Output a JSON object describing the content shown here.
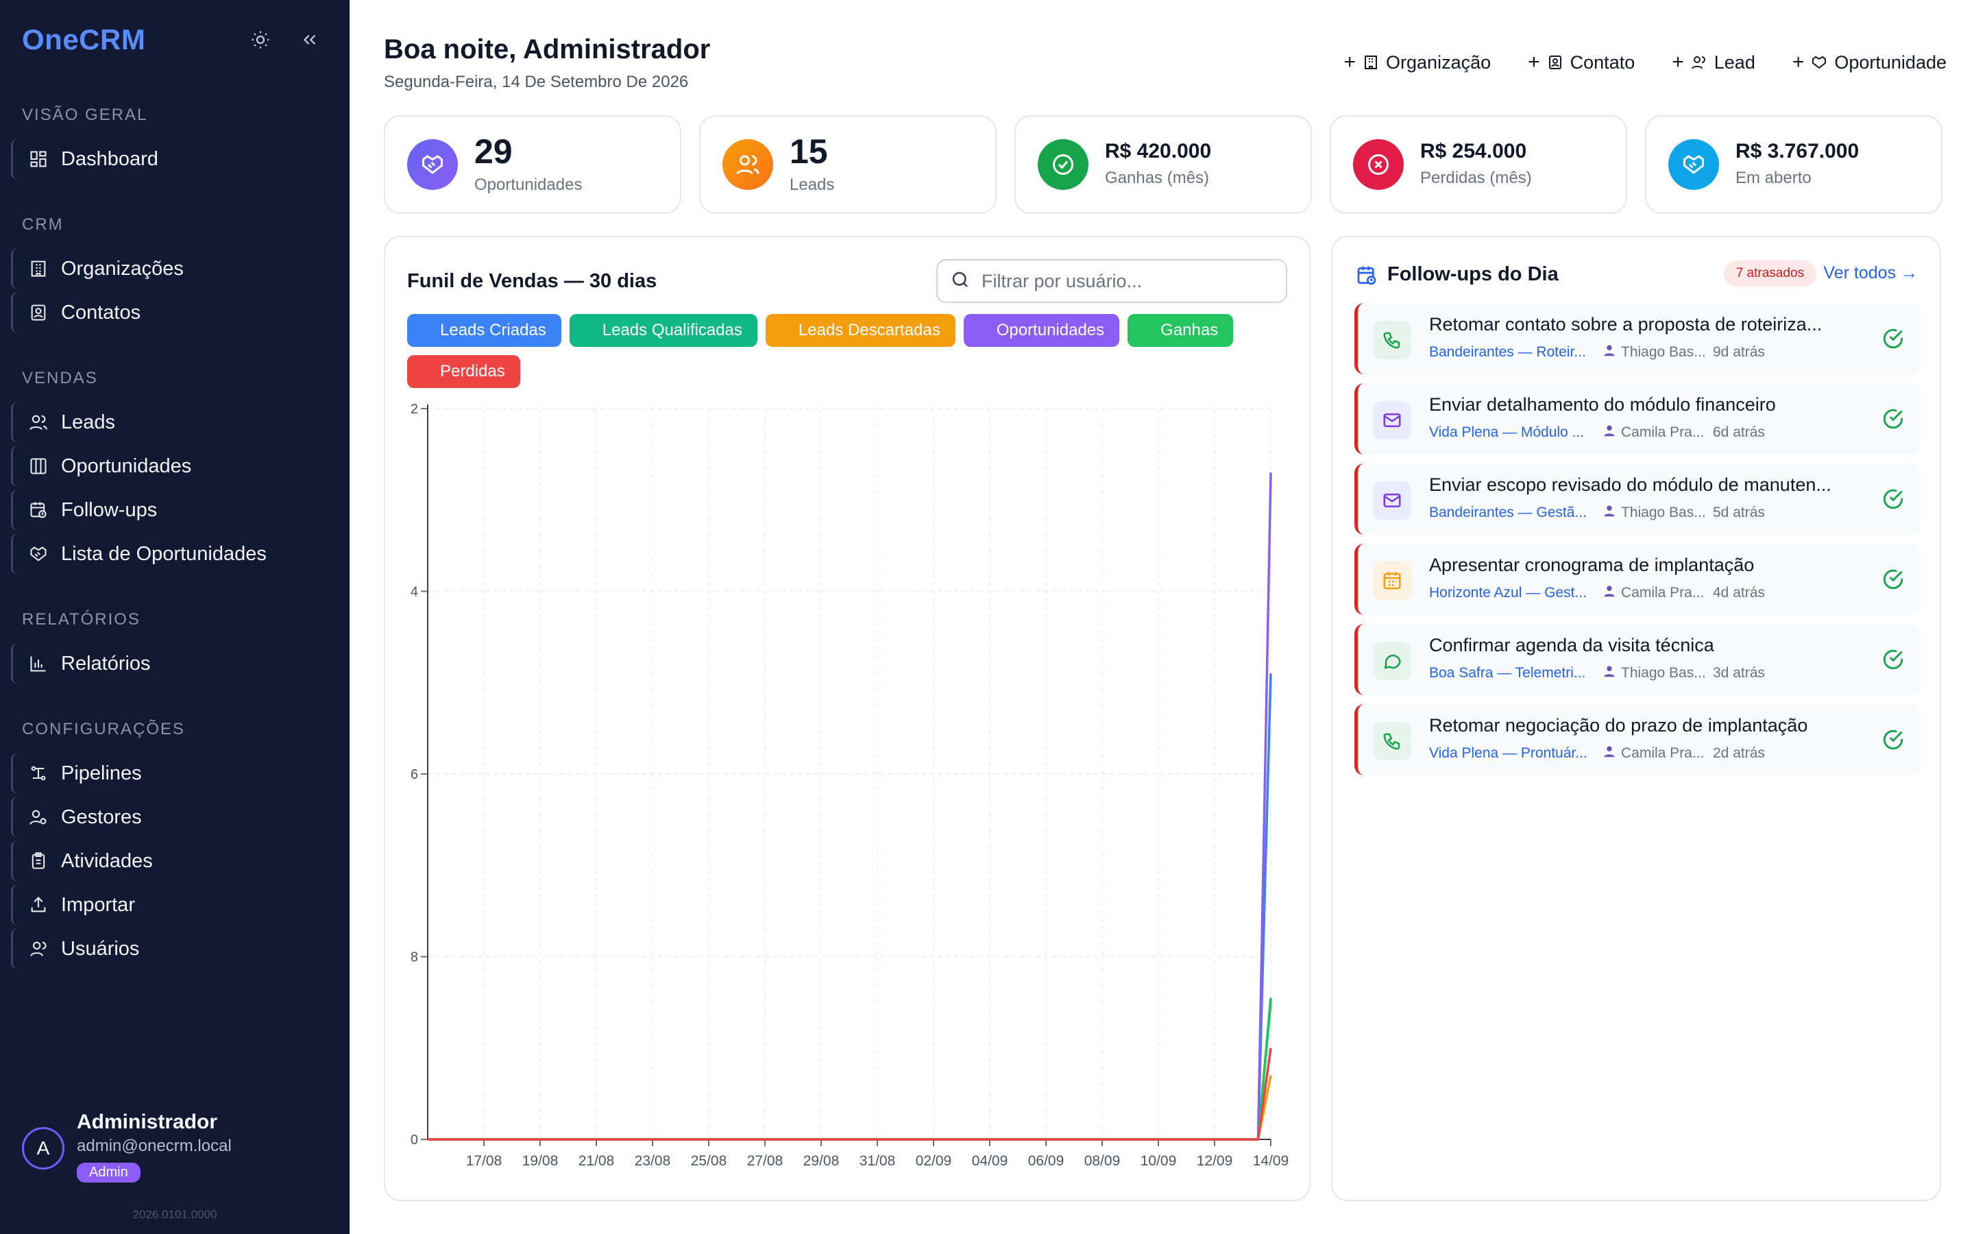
{
  "sidebar": {
    "brand": "OneCRM",
    "sections": [
      {
        "title": "VISÃO GERAL",
        "items": [
          {
            "label": "Dashboard",
            "icon": "dashboard-icon"
          }
        ]
      },
      {
        "title": "CRM",
        "items": [
          {
            "label": "Organizações",
            "icon": "building-icon"
          },
          {
            "label": "Contatos",
            "icon": "contact-icon"
          }
        ]
      },
      {
        "title": "VENDAS",
        "items": [
          {
            "label": "Leads",
            "icon": "users-icon"
          },
          {
            "label": "Oportunidades",
            "icon": "kanban-icon"
          },
          {
            "label": "Follow-ups",
            "icon": "calendar-clock-icon"
          },
          {
            "label": "Lista de Oportunidades",
            "icon": "handshake-icon"
          }
        ]
      },
      {
        "title": "RELATÓRIOS",
        "items": [
          {
            "label": "Relatórios",
            "icon": "bar-chart-icon"
          }
        ]
      },
      {
        "title": "CONFIGURAÇÕES",
        "items": [
          {
            "label": "Pipelines",
            "icon": "pipeline-icon"
          },
          {
            "label": "Gestores",
            "icon": "user-cog-icon"
          },
          {
            "label": "Atividades",
            "icon": "clipboard-icon"
          },
          {
            "label": "Importar",
            "icon": "upload-icon"
          },
          {
            "label": "Usuários",
            "icon": "user-icon"
          }
        ]
      }
    ],
    "user": {
      "initial": "A",
      "name": "Administrador",
      "email": "admin@onecrm.local",
      "role": "Admin"
    },
    "version": "2026.0101.0000"
  },
  "header": {
    "greeting": "Boa noite, Administrador",
    "date": "Segunda-Feira, 14 De Setembro De 2026",
    "quick_actions": [
      {
        "label": "Organização",
        "icon": "building-icon"
      },
      {
        "label": "Contato",
        "icon": "contact-icon"
      },
      {
        "label": "Lead",
        "icon": "users-icon"
      },
      {
        "label": "Oportunidade",
        "icon": "handshake-icon"
      }
    ]
  },
  "kpis": [
    {
      "value": "29",
      "label": "Oportunidades",
      "color": "#6d5efc",
      "icon": "handshake-icon"
    },
    {
      "value": "15",
      "label": "Leads",
      "color": "#f97316",
      "icon": "users-icon"
    },
    {
      "value": "R$ 420.000",
      "label": "Ganhas (mês)",
      "color": "#16a34a",
      "icon": "check-circle-icon"
    },
    {
      "value": "R$ 254.000",
      "label": "Perdidas (mês)",
      "color": "#e11d48",
      "icon": "x-circle-icon"
    },
    {
      "value": "R$ 3.767.000",
      "label": "Em aberto",
      "color": "#0ea5e9",
      "icon": "handshake-icon"
    }
  ],
  "funnel": {
    "title": "Funil de Vendas — 30 dias",
    "filter_placeholder": "Filtrar por usuário..."
  },
  "chart_data": {
    "type": "line",
    "title": "Funil de Vendas — 30 dias",
    "x": [
      "17/08",
      "19/08",
      "21/08",
      "23/08",
      "25/08",
      "27/08",
      "29/08",
      "31/08",
      "02/09",
      "04/09",
      "06/09",
      "08/09",
      "10/09",
      "12/09",
      "14/09"
    ],
    "x_domain": [
      "15/08",
      "14/09"
    ],
    "y_ticks": [
      "0",
      "8",
      "6",
      "4",
      "2"
    ],
    "grid": true,
    "legend_position": "top-left",
    "series": [
      {
        "name": "Leads Criadas",
        "color": "#3b82f6",
        "values": [
          0,
          0,
          0,
          0,
          0,
          0,
          0,
          0,
          0,
          0,
          0,
          0,
          0,
          0,
          10.2
        ]
      },
      {
        "name": "Leads Qualificadas",
        "color": "#10b981",
        "values": [
          0,
          0,
          0,
          0,
          0,
          0,
          0,
          0,
          0,
          0,
          0,
          0,
          0,
          0,
          3.1
        ]
      },
      {
        "name": "Leads Descartadas",
        "color": "#f59e0b",
        "values": [
          0,
          0,
          0,
          0,
          0,
          0,
          0,
          0,
          0,
          0,
          0,
          0,
          0,
          0,
          1.4
        ]
      },
      {
        "name": "Oportunidades",
        "color": "#8b5cf6",
        "values": [
          0,
          0,
          0,
          0,
          0,
          0,
          0,
          0,
          0,
          0,
          0,
          0,
          0,
          0,
          14.6
        ]
      },
      {
        "name": "Ganhas",
        "color": "#22c55e",
        "values": [
          0,
          0,
          0,
          0,
          0,
          0,
          0,
          0,
          0,
          0,
          0,
          0,
          0,
          0,
          3.0
        ]
      },
      {
        "name": "Perdidas",
        "color": "#ef4444",
        "values": [
          0,
          0,
          0,
          0,
          0,
          0,
          0,
          0,
          0,
          0,
          0,
          0,
          0,
          0,
          2.0
        ]
      }
    ]
  },
  "followups": {
    "title": "Follow-ups do Dia",
    "overdue_badge": "7 atrasados",
    "see_all": "Ver todos →",
    "items": [
      {
        "title": "Retomar contato sobre a proposta de roteiriza...",
        "org": "Bandeirantes — Roteir...",
        "user": "Thiago Bas...",
        "ago": "9d atrás",
        "type_icon": "phone-icon",
        "icon_color": "#16a34a"
      },
      {
        "title": "Enviar detalhamento do módulo financeiro",
        "org": "Vida Plena — Módulo ...",
        "user": "Camila Pra...",
        "ago": "6d atrás",
        "type_icon": "mail-icon",
        "icon_color": "#7c3aed"
      },
      {
        "title": "Enviar escopo revisado do módulo de manuten...",
        "org": "Bandeirantes — Gestã...",
        "user": "Thiago Bas...",
        "ago": "5d atrás",
        "type_icon": "mail-icon",
        "icon_color": "#7c3aed"
      },
      {
        "title": "Apresentar cronograma de implantação",
        "org": "Horizonte Azul — Gest...",
        "user": "Camila Pra...",
        "ago": "4d atrás",
        "type_icon": "calendar-icon",
        "icon_color": "#f59e0b"
      },
      {
        "title": "Confirmar agenda da visita técnica",
        "org": "Boa Safra — Telemetri...",
        "user": "Thiago Bas...",
        "ago": "3d atrás",
        "type_icon": "chat-icon",
        "icon_color": "#16a34a"
      },
      {
        "title": "Retomar negociação do prazo de implantação",
        "org": "Vida Plena — Prontuár...",
        "user": "Camila Pra...",
        "ago": "2d atrás",
        "type_icon": "phone-icon",
        "icon_color": "#16a34a"
      }
    ]
  }
}
